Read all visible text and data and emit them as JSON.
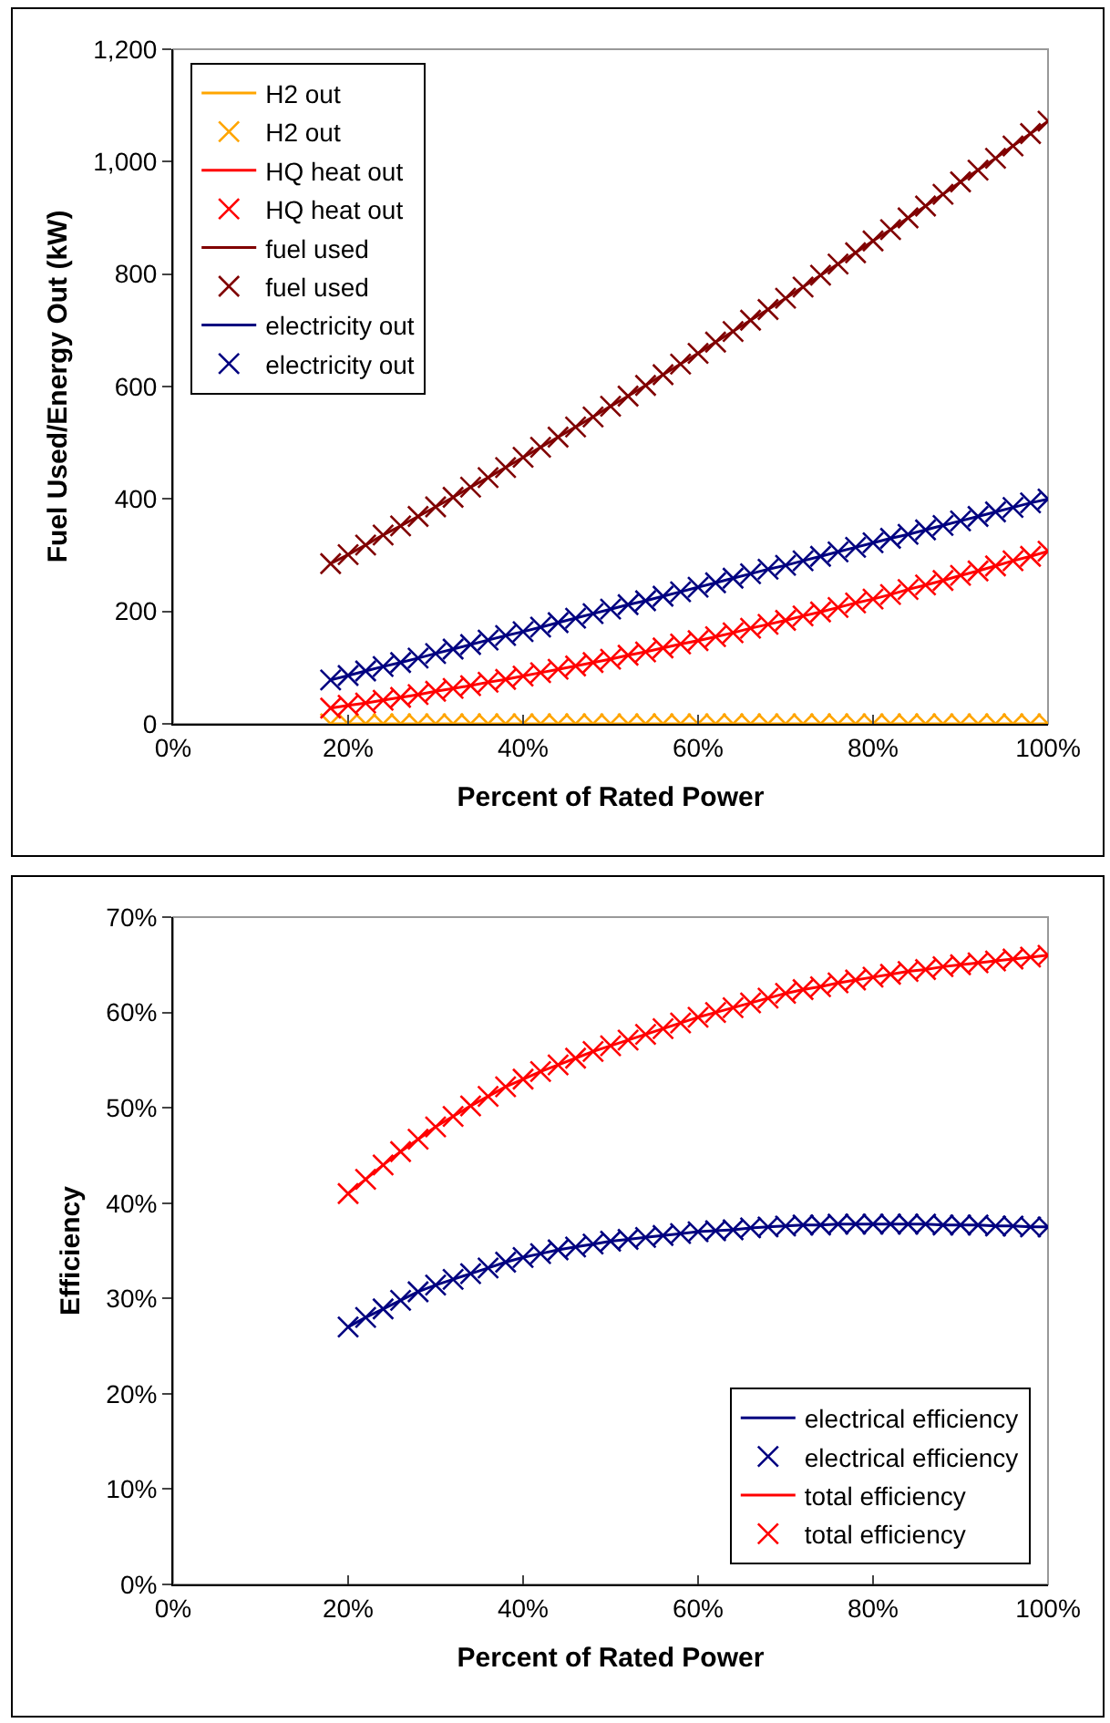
{
  "chart_data": [
    {
      "type": "line",
      "xlabel": "Percent of Rated Power",
      "ylabel": "Fuel Used/Energy Out (kW)",
      "xlim": [
        0,
        100
      ],
      "ylim": [
        0,
        1200
      ],
      "xticks": [
        {
          "value": 0,
          "label": "0%"
        },
        {
          "value": 20,
          "label": "20%"
        },
        {
          "value": 40,
          "label": "40%"
        },
        {
          "value": 60,
          "label": "60%"
        },
        {
          "value": 80,
          "label": "80%"
        },
        {
          "value": 100,
          "label": "100%"
        }
      ],
      "yticks": [
        0,
        200,
        400,
        600,
        800,
        {
          "value": 1000,
          "label": "1,000"
        },
        {
          "value": 1200,
          "label": "1,200"
        }
      ],
      "grid": false,
      "legend": "top left",
      "x": [
        18,
        20,
        22,
        24,
        26,
        28,
        30,
        32,
        34,
        36,
        38,
        40,
        42,
        44,
        46,
        48,
        50,
        52,
        54,
        56,
        58,
        60,
        62,
        64,
        66,
        68,
        70,
        72,
        74,
        76,
        78,
        80,
        82,
        84,
        86,
        88,
        90,
        92,
        94,
        96,
        98,
        100
      ],
      "series": [
        {
          "name": "H2 out",
          "type": "line",
          "color": "#ffa500",
          "values": [
            0,
            0,
            0,
            0,
            0,
            0,
            0,
            0,
            0,
            0,
            0,
            0,
            0,
            0,
            0,
            0,
            0,
            0,
            0,
            0,
            0,
            0,
            0,
            0,
            0,
            0,
            0,
            0,
            0,
            0,
            0,
            0,
            0,
            0,
            0,
            0,
            0,
            0,
            0,
            0,
            0,
            0
          ]
        },
        {
          "name": "H2 out",
          "type": "scatter",
          "marker": "cross",
          "color": "#ffa500",
          "values": [
            0,
            0,
            0,
            0,
            0,
            0,
            0,
            0,
            0,
            0,
            0,
            0,
            0,
            0,
            0,
            0,
            0,
            0,
            0,
            0,
            0,
            0,
            0,
            0,
            0,
            0,
            0,
            0,
            0,
            0,
            0,
            0,
            0,
            0,
            0,
            0,
            0,
            0,
            0,
            0,
            0,
            0
          ]
        },
        {
          "name": "HQ heat out",
          "type": "line",
          "color": "#ff0000",
          "values": [
            28,
            33,
            37,
            42,
            47,
            52,
            58,
            63,
            68,
            74,
            79,
            85,
            91,
            97,
            103,
            109,
            115,
            122,
            128,
            135,
            142,
            148,
            155,
            162,
            170,
            177,
            184,
            192,
            199,
            207,
            215,
            222,
            230,
            239,
            247,
            255,
            264,
            272,
            281,
            290,
            298,
            307
          ]
        },
        {
          "name": "HQ heat out",
          "type": "scatter",
          "marker": "cross",
          "color": "#ff0000",
          "values": [
            28,
            33,
            37,
            42,
            47,
            52,
            58,
            63,
            68,
            74,
            79,
            85,
            91,
            97,
            103,
            109,
            115,
            122,
            128,
            135,
            142,
            148,
            155,
            162,
            170,
            177,
            184,
            192,
            199,
            207,
            215,
            222,
            230,
            239,
            247,
            255,
            264,
            272,
            281,
            290,
            298,
            307
          ]
        },
        {
          "name": "fuel used",
          "type": "line",
          "color": "#800000",
          "values": [
            285,
            301,
            318,
            336,
            352,
            369,
            386,
            403,
            421,
            438,
            456,
            474,
            492,
            510,
            528,
            546,
            565,
            583,
            602,
            621,
            640,
            659,
            679,
            698,
            718,
            737,
            757,
            777,
            798,
            818,
            838,
            859,
            879,
            900,
            921,
            942,
            964,
            985,
            1006,
            1028,
            1050,
            1072
          ]
        },
        {
          "name": "fuel used",
          "type": "scatter",
          "marker": "cross",
          "color": "#800000",
          "values": [
            285,
            301,
            318,
            336,
            352,
            369,
            386,
            403,
            421,
            438,
            456,
            474,
            492,
            510,
            528,
            546,
            565,
            583,
            602,
            621,
            640,
            659,
            679,
            698,
            718,
            737,
            757,
            777,
            798,
            818,
            838,
            859,
            879,
            900,
            921,
            942,
            964,
            985,
            1006,
            1028,
            1050,
            1072
          ]
        },
        {
          "name": "electricity out",
          "type": "line",
          "color": "#000080",
          "values": [
            78,
            86,
            94,
            102,
            109,
            117,
            125,
            133,
            141,
            149,
            157,
            164,
            172,
            180,
            188,
            196,
            204,
            212,
            219,
            227,
            235,
            243,
            251,
            259,
            267,
            275,
            282,
            290,
            298,
            306,
            314,
            322,
            330,
            337,
            345,
            353,
            361,
            369,
            377,
            385,
            393,
            400
          ]
        },
        {
          "name": "electricity out",
          "type": "scatter",
          "marker": "cross",
          "color": "#000080",
          "values": [
            78,
            86,
            94,
            102,
            109,
            117,
            125,
            133,
            141,
            149,
            157,
            164,
            172,
            180,
            188,
            196,
            204,
            212,
            219,
            227,
            235,
            243,
            251,
            259,
            267,
            275,
            282,
            290,
            298,
            306,
            314,
            322,
            330,
            337,
            345,
            353,
            361,
            369,
            377,
            385,
            393,
            400
          ]
        }
      ]
    },
    {
      "type": "line",
      "xlabel": "Percent of Rated Power",
      "ylabel": "Efficiency",
      "xlim": [
        0,
        100
      ],
      "ylim": [
        0,
        70
      ],
      "xticks": [
        {
          "value": 0,
          "label": "0%"
        },
        {
          "value": 20,
          "label": "20%"
        },
        {
          "value": 40,
          "label": "40%"
        },
        {
          "value": 60,
          "label": "60%"
        },
        {
          "value": 80,
          "label": "80%"
        },
        {
          "value": 100,
          "label": "100%"
        }
      ],
      "yticks": [
        {
          "value": 0,
          "label": "0%"
        },
        {
          "value": 10,
          "label": "10%"
        },
        {
          "value": 20,
          "label": "20%"
        },
        {
          "value": 30,
          "label": "30%"
        },
        {
          "value": 40,
          "label": "40%"
        },
        {
          "value": 50,
          "label": "50%"
        },
        {
          "value": 60,
          "label": "60%"
        },
        {
          "value": 70,
          "label": "70%"
        }
      ],
      "grid": false,
      "legend": "bottom right",
      "x": [
        20,
        22,
        24,
        26,
        28,
        30,
        32,
        34,
        36,
        38,
        40,
        42,
        44,
        46,
        48,
        50,
        52,
        54,
        56,
        58,
        60,
        62,
        64,
        66,
        68,
        70,
        72,
        74,
        76,
        78,
        80,
        82,
        84,
        86,
        88,
        90,
        92,
        94,
        96,
        98,
        100
      ],
      "series": [
        {
          "name": "electrical efficiency",
          "type": "line",
          "color": "#000080",
          "values": [
            27.0,
            28.0,
            28.9,
            29.8,
            30.7,
            31.4,
            32.0,
            32.6,
            33.2,
            33.8,
            34.3,
            34.7,
            35.1,
            35.4,
            35.7,
            36.0,
            36.2,
            36.4,
            36.6,
            36.8,
            37.0,
            37.1,
            37.2,
            37.4,
            37.5,
            37.6,
            37.7,
            37.7,
            37.8,
            37.8,
            37.8,
            37.8,
            37.8,
            37.8,
            37.7,
            37.7,
            37.7,
            37.6,
            37.6,
            37.5,
            37.5
          ]
        },
        {
          "name": "electrical efficiency",
          "type": "scatter",
          "marker": "cross",
          "color": "#000080",
          "values": [
            27.0,
            28.0,
            28.9,
            29.8,
            30.7,
            31.4,
            32.0,
            32.6,
            33.2,
            33.8,
            34.3,
            34.7,
            35.1,
            35.4,
            35.7,
            36.0,
            36.2,
            36.4,
            36.6,
            36.8,
            37.0,
            37.1,
            37.2,
            37.4,
            37.5,
            37.6,
            37.7,
            37.7,
            37.8,
            37.8,
            37.8,
            37.8,
            37.8,
            37.8,
            37.7,
            37.7,
            37.7,
            37.6,
            37.6,
            37.5,
            37.5
          ]
        },
        {
          "name": "total efficiency",
          "type": "line",
          "color": "#ff0000",
          "values": [
            41.0,
            42.5,
            44.0,
            45.4,
            46.7,
            48.0,
            49.1,
            50.2,
            51.2,
            52.2,
            53.0,
            53.8,
            54.5,
            55.2,
            55.9,
            56.5,
            57.1,
            57.7,
            58.3,
            58.9,
            59.5,
            60.0,
            60.5,
            61.0,
            61.5,
            62.0,
            62.4,
            62.7,
            63.1,
            63.4,
            63.7,
            64.0,
            64.3,
            64.5,
            64.8,
            65.0,
            65.2,
            65.4,
            65.6,
            65.8,
            66.0
          ]
        },
        {
          "name": "total efficiency",
          "type": "scatter",
          "marker": "cross",
          "color": "#ff0000",
          "values": [
            41.0,
            42.5,
            44.0,
            45.4,
            46.7,
            48.0,
            49.1,
            50.2,
            51.2,
            52.2,
            53.0,
            53.8,
            54.5,
            55.2,
            55.9,
            56.5,
            57.1,
            57.7,
            58.3,
            58.9,
            59.5,
            60.0,
            60.5,
            61.0,
            61.5,
            62.0,
            62.4,
            62.7,
            63.1,
            63.4,
            63.7,
            64.0,
            64.3,
            64.5,
            64.8,
            65.0,
            65.2,
            65.4,
            65.6,
            65.8,
            66.0
          ]
        }
      ]
    }
  ]
}
